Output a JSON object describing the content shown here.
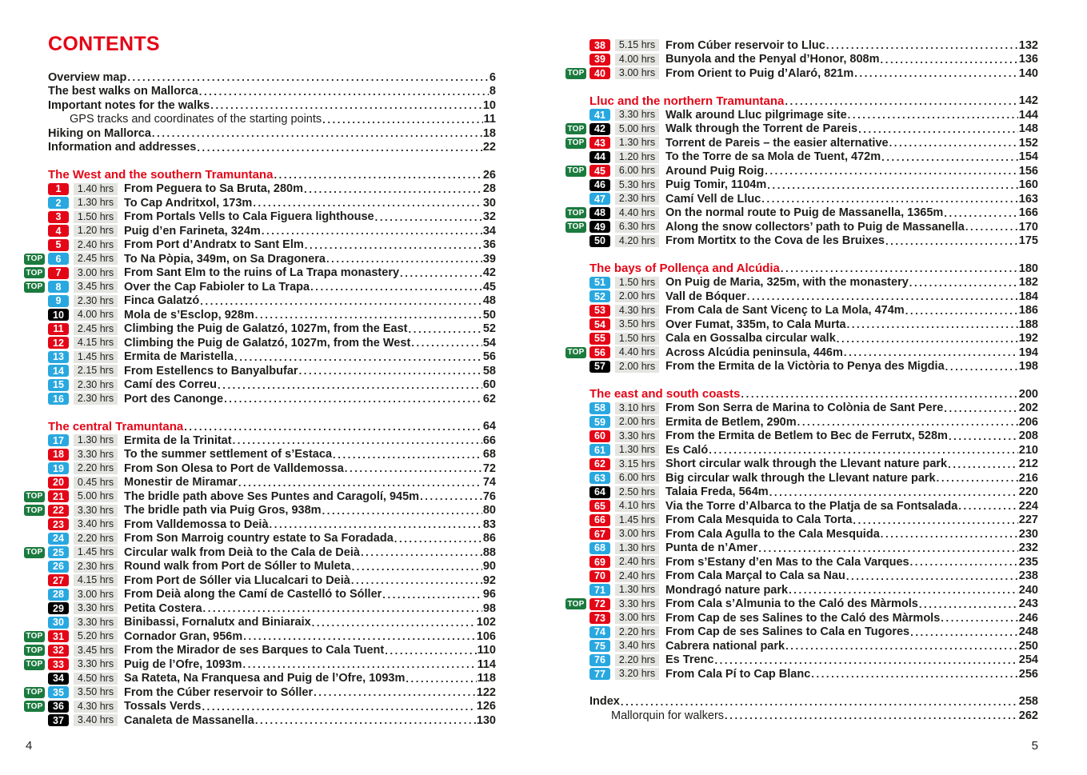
{
  "colors": {
    "accent_red": "#e30617",
    "top_green": "#1b7a3e",
    "easy_blue": "#29a8e0",
    "hard_black": "#000000",
    "time_bg": "#e4e4e0",
    "text": "#1d1d1b"
  },
  "badges": {
    "top_label": "TOP"
  },
  "page_left": {
    "title": "CONTENTS",
    "footer_page": "4",
    "intro": [
      {
        "label": "Overview map",
        "page": "6"
      },
      {
        "label": "The best walks on Mallorca",
        "page": "8"
      },
      {
        "label": "Important notes for the walks",
        "page": "10"
      },
      {
        "label": "GPS tracks and coordinates of the starting points",
        "page": "11",
        "indent": true,
        "plain": true
      },
      {
        "label": "Hiking on Mallorca",
        "page": "18"
      },
      {
        "label": "Information and addresses",
        "page": "22"
      }
    ],
    "groups": [
      {
        "heading": "The West and the southern Tramuntana",
        "page": "26",
        "walks": [
          {
            "num": "1",
            "difficulty": "red",
            "top": false,
            "time": "1.40 hrs",
            "title": "From Peguera to Sa Bruta, 280m",
            "page": "28"
          },
          {
            "num": "2",
            "difficulty": "blue",
            "top": false,
            "time": "1.30 hrs",
            "title": "To Cap Andritxol, 173m",
            "page": "30"
          },
          {
            "num": "3",
            "difficulty": "red",
            "top": false,
            "time": "1.50 hrs",
            "title": "From Portals Vells to Cala Figuera lighthouse",
            "page": "32"
          },
          {
            "num": "4",
            "difficulty": "red",
            "top": false,
            "time": "1.20 hrs",
            "title": "Puig d’en Farineta, 324m",
            "page": "34"
          },
          {
            "num": "5",
            "difficulty": "red",
            "top": false,
            "time": "2.40 hrs",
            "title": "From Port d’Andratx to Sant Elm",
            "page": "36"
          },
          {
            "num": "6",
            "difficulty": "blue",
            "top": true,
            "time": "2.45 hrs",
            "title": "To Na Pòpia, 349m, on Sa Dragonera",
            "page": "39"
          },
          {
            "num": "7",
            "difficulty": "red",
            "top": true,
            "time": "3.00 hrs",
            "title": "From Sant Elm to the ruins of La Trapa monastery",
            "page": "42"
          },
          {
            "num": "8",
            "difficulty": "blue",
            "top": true,
            "time": "3.45 hrs",
            "title": "Over the Cap Fabioler to La Trapa",
            "page": "45"
          },
          {
            "num": "9",
            "difficulty": "blue",
            "top": false,
            "time": "2.30 hrs",
            "title": "Finca Galatzó",
            "page": "48"
          },
          {
            "num": "10",
            "difficulty": "black",
            "top": false,
            "time": "4.00 hrs",
            "title": "Mola de s’Esclop, 928m",
            "page": "50"
          },
          {
            "num": "11",
            "difficulty": "red",
            "top": false,
            "time": "2.45 hrs",
            "title": "Climbing the Puig de Galatzó, 1027m, from the East",
            "page": "52"
          },
          {
            "num": "12",
            "difficulty": "red",
            "top": false,
            "time": "4.15 hrs",
            "title": "Climbing the Puig de Galatzó, 1027m, from the West",
            "page": "54"
          },
          {
            "num": "13",
            "difficulty": "blue",
            "top": false,
            "time": "1.45 hrs",
            "title": "Ermita de Maristella",
            "page": "56"
          },
          {
            "num": "14",
            "difficulty": "blue",
            "top": false,
            "time": "2.15 hrs",
            "title": "From Estellencs to Banyalbufar",
            "page": "58"
          },
          {
            "num": "15",
            "difficulty": "blue",
            "top": false,
            "time": "2.30 hrs",
            "title": "Camí des Correu",
            "page": "60"
          },
          {
            "num": "16",
            "difficulty": "blue",
            "top": false,
            "time": "2.30 hrs",
            "title": "Port des Canonge",
            "page": "62"
          }
        ]
      },
      {
        "heading": "The central Tramuntana",
        "page": "64",
        "walks": [
          {
            "num": "17",
            "difficulty": "blue",
            "top": false,
            "time": "1.30 hrs",
            "title": "Ermita de la Trinitat",
            "page": "66"
          },
          {
            "num": "18",
            "difficulty": "red",
            "top": false,
            "time": "3.30 hrs",
            "title": "To the summer settlement of s’Estaca",
            "page": "68"
          },
          {
            "num": "19",
            "difficulty": "blue",
            "top": false,
            "time": "2.20 hrs",
            "title": "From Son Olesa to Port de Valldemossa",
            "page": "72"
          },
          {
            "num": "20",
            "difficulty": "red",
            "top": false,
            "time": "0.45 hrs",
            "title": "Monestir de Miramar",
            "page": "74"
          },
          {
            "num": "21",
            "difficulty": "red",
            "top": true,
            "time": "5.00 hrs",
            "title": "The bridle path above Ses Puntes and Caragolí, 945m",
            "page": "76"
          },
          {
            "num": "22",
            "difficulty": "red",
            "top": true,
            "time": "3.30 hrs",
            "title": "The bridle path via Puig Gros, 938m",
            "page": "80"
          },
          {
            "num": "23",
            "difficulty": "red",
            "top": false,
            "time": "3.40 hrs",
            "title": "From Valldemossa to Deià",
            "page": "83"
          },
          {
            "num": "24",
            "difficulty": "blue",
            "top": false,
            "time": "2.20 hrs",
            "title": "From Son Marroig country estate to Sa Foradada",
            "page": "86"
          },
          {
            "num": "25",
            "difficulty": "blue",
            "top": true,
            "time": "1.45 hrs",
            "title": "Circular walk from Deià to the Cala de Deià",
            "page": "88"
          },
          {
            "num": "26",
            "difficulty": "blue",
            "top": false,
            "time": "2.30 hrs",
            "title": "Round walk from Port de Sóller to Muleta",
            "page": "90"
          },
          {
            "num": "27",
            "difficulty": "red",
            "top": false,
            "time": "4.15 hrs",
            "title": "From Port de Sóller via Llucalcari to Deià",
            "page": "92"
          },
          {
            "num": "28",
            "difficulty": "blue",
            "top": false,
            "time": "3.00 hrs",
            "title": "From Deià along the Camí de Castelló to Sóller",
            "page": "96"
          },
          {
            "num": "29",
            "difficulty": "black",
            "top": false,
            "time": "3.30 hrs",
            "title": "Petita Costera",
            "page": "98"
          },
          {
            "num": "30",
            "difficulty": "blue",
            "top": false,
            "time": "3.30 hrs",
            "title": "Binibassi, Fornalutx and Biniaraix",
            "page": "102"
          },
          {
            "num": "31",
            "difficulty": "red",
            "top": true,
            "time": "5.20 hrs",
            "title": "Cornador Gran, 956m",
            "page": "106"
          },
          {
            "num": "32",
            "difficulty": "red",
            "top": true,
            "time": "3.45 hrs",
            "title": "From the Mirador de ses Barques to Cala Tuent",
            "page": "110"
          },
          {
            "num": "33",
            "difficulty": "red",
            "top": true,
            "time": "3.30 hrs",
            "title": "Puig de l’Ofre, 1093m",
            "page": "114"
          },
          {
            "num": "34",
            "difficulty": "black",
            "top": false,
            "time": "4.50 hrs",
            "title": "Sa Rateta, Na Franquesa and Puig de l’Ofre, 1093m",
            "page": "118"
          },
          {
            "num": "35",
            "difficulty": "blue",
            "top": true,
            "time": "3.50 hrs",
            "title": "From the Cúber reservoir to Sóller",
            "page": "122"
          },
          {
            "num": "36",
            "difficulty": "black",
            "top": true,
            "time": "4.30 hrs",
            "title": "Tossals Verds",
            "page": "126"
          },
          {
            "num": "37",
            "difficulty": "black",
            "top": false,
            "time": "3.40 hrs",
            "title": "Canaleta de Massanella",
            "page": "130"
          }
        ]
      }
    ]
  },
  "page_right": {
    "footer_page": "5",
    "groups": [
      {
        "heading": null,
        "walks": [
          {
            "num": "38",
            "difficulty": "red",
            "top": false,
            "time": "5.15 hrs",
            "title": "From Cúber reservoir to Lluc",
            "page": "132"
          },
          {
            "num": "39",
            "difficulty": "red",
            "top": false,
            "time": "4.00 hrs",
            "title": "Bunyola and the Penyal d’Honor, 808m",
            "page": "136"
          },
          {
            "num": "40",
            "difficulty": "red",
            "top": true,
            "time": "3.00 hrs",
            "title": "From Orient to Puig d’Alaró, 821m",
            "page": "140"
          }
        ]
      },
      {
        "heading": "Lluc and the northern Tramuntana",
        "page": "142",
        "walks": [
          {
            "num": "41",
            "difficulty": "blue",
            "top": false,
            "time": "3.30 hrs",
            "title": "Walk around Lluc pilgrimage site",
            "page": "144"
          },
          {
            "num": "42",
            "difficulty": "black",
            "top": true,
            "time": "5.00 hrs",
            "title": "Walk through the Torrent de Pareis",
            "page": "148"
          },
          {
            "num": "43",
            "difficulty": "red",
            "top": true,
            "time": "1.30 hrs",
            "title": "Torrent de Pareis – the easier alternative",
            "page": "152"
          },
          {
            "num": "44",
            "difficulty": "black",
            "top": false,
            "time": "1.20 hrs",
            "title": "To the Torre de sa Mola de Tuent, 472m",
            "page": "154"
          },
          {
            "num": "45",
            "difficulty": "red",
            "top": true,
            "time": "6.00 hrs",
            "title": "Around Puig Roig",
            "page": "156"
          },
          {
            "num": "46",
            "difficulty": "black",
            "top": false,
            "time": "5.30 hrs",
            "title": "Puig Tomir, 1104m",
            "page": "160"
          },
          {
            "num": "47",
            "difficulty": "blue",
            "top": false,
            "time": "2.30 hrs",
            "title": "Camí Vell de Lluc",
            "page": "163"
          },
          {
            "num": "48",
            "difficulty": "black",
            "top": true,
            "time": "4.40 hrs",
            "title": "On the normal route to Puig de Massanella, 1365m",
            "page": "166"
          },
          {
            "num": "49",
            "difficulty": "black",
            "top": true,
            "time": "6.30 hrs",
            "title": "Along the snow collectors’ path to Puig de Massanella",
            "page": "170"
          },
          {
            "num": "50",
            "difficulty": "black",
            "top": false,
            "time": "4.20 hrs",
            "title": "From Mortitx to the Cova de les Bruixes",
            "page": "175"
          }
        ]
      },
      {
        "heading": "The bays of Pollença and Alcúdia",
        "page": "180",
        "walks": [
          {
            "num": "51",
            "difficulty": "blue",
            "top": false,
            "time": "1.50 hrs",
            "title": "On Puig de Maria, 325m, with the monastery",
            "page": "182"
          },
          {
            "num": "52",
            "difficulty": "blue",
            "top": false,
            "time": "2.00 hrs",
            "title": "Vall de Bóquer",
            "page": "184"
          },
          {
            "num": "53",
            "difficulty": "red",
            "top": false,
            "time": "4.30 hrs",
            "title": "From Cala de Sant Vicenç to La Mola, 474m",
            "page": "186"
          },
          {
            "num": "54",
            "difficulty": "red",
            "top": false,
            "time": "3.50 hrs",
            "title": "Over Fumat, 335m, to Cala Murta",
            "page": "188"
          },
          {
            "num": "55",
            "difficulty": "red",
            "top": false,
            "time": "1.50 hrs",
            "title": "Cala en Gossalba circular walk",
            "page": "192"
          },
          {
            "num": "56",
            "difficulty": "red",
            "top": true,
            "time": "4.40 hrs",
            "title": "Across Alcúdia peninsula, 446m",
            "page": "194"
          },
          {
            "num": "57",
            "difficulty": "black",
            "top": false,
            "time": "2.00 hrs",
            "title": "From the Ermita de la Victòria to Penya des Migdia",
            "page": "198"
          }
        ]
      },
      {
        "heading": "The east and south coasts",
        "page": "200",
        "walks": [
          {
            "num": "58",
            "difficulty": "blue",
            "top": false,
            "time": "3.10 hrs",
            "title": "From Son Serra de Marina to Colònia de Sant Pere",
            "page": "202"
          },
          {
            "num": "59",
            "difficulty": "blue",
            "top": false,
            "time": "2.00 hrs",
            "title": "Ermita de Betlem, 290m",
            "page": "206"
          },
          {
            "num": "60",
            "difficulty": "red",
            "top": false,
            "time": "3.30 hrs",
            "title": "From the Ermita de Betlem to Bec de Ferrutx, 528m",
            "page": "208"
          },
          {
            "num": "61",
            "difficulty": "blue",
            "top": false,
            "time": "1.30 hrs",
            "title": "Es Caló",
            "page": "210"
          },
          {
            "num": "62",
            "difficulty": "red",
            "top": false,
            "time": "3.15 hrs",
            "title": "Short circular walk through the Llevant nature park",
            "page": "212"
          },
          {
            "num": "63",
            "difficulty": "blue",
            "top": false,
            "time": "6.00 hrs",
            "title": "Big circular walk through the Llevant nature park",
            "page": "216"
          },
          {
            "num": "64",
            "difficulty": "black",
            "top": false,
            "time": "2.50 hrs",
            "title": "Talaia Freda, 564m",
            "page": "220"
          },
          {
            "num": "65",
            "difficulty": "red",
            "top": false,
            "time": "4.10 hrs",
            "title": "Via the Torre d’Albarca to the Platja de sa Fontsalada",
            "page": "224"
          },
          {
            "num": "66",
            "difficulty": "red",
            "top": false,
            "time": "1.45 hrs",
            "title": "From Cala Mesquida to Cala Torta",
            "page": "227"
          },
          {
            "num": "67",
            "difficulty": "red",
            "top": false,
            "time": "3.00 hrs",
            "title": "From Cala Agulla to the Cala Mesquida",
            "page": "230"
          },
          {
            "num": "68",
            "difficulty": "blue",
            "top": false,
            "time": "1.30 hrs",
            "title": "Punta de n’Amer",
            "page": "232"
          },
          {
            "num": "69",
            "difficulty": "red",
            "top": false,
            "time": "2.40 hrs",
            "title": "From s’Estany d’en Mas to the Cala Varques",
            "page": "235"
          },
          {
            "num": "70",
            "difficulty": "red",
            "top": false,
            "time": "2.40 hrs",
            "title": "From Cala Marçal to Cala sa Nau",
            "page": "238"
          },
          {
            "num": "71",
            "difficulty": "blue",
            "top": false,
            "time": "1.30 hrs",
            "title": "Mondragó nature park",
            "page": "240"
          },
          {
            "num": "72",
            "difficulty": "red",
            "top": true,
            "time": "3.30 hrs",
            "title": "From Cala s’Almunia to the Caló des Màrmols",
            "page": "243"
          },
          {
            "num": "73",
            "difficulty": "red",
            "top": false,
            "time": "3.00 hrs",
            "title": "From Cap de ses Salines to the Caló des Màrmols",
            "page": "246"
          },
          {
            "num": "74",
            "difficulty": "blue",
            "top": false,
            "time": "2.20 hrs",
            "title": "From Cap de ses Salines to Cala en Tugores",
            "page": "248"
          },
          {
            "num": "75",
            "difficulty": "blue",
            "top": false,
            "time": "3.40 hrs",
            "title": "Cabrera national park",
            "page": "250"
          },
          {
            "num": "76",
            "difficulty": "blue",
            "top": false,
            "time": "2.20 hrs",
            "title": "Es Trenc",
            "page": "254"
          },
          {
            "num": "77",
            "difficulty": "blue",
            "top": false,
            "time": "3.20 hrs",
            "title": "From Cala Pí to Cap Blanc",
            "page": "256"
          }
        ]
      }
    ],
    "outro": [
      {
        "label": "Index",
        "page": "258"
      },
      {
        "label": "Mallorquin for walkers",
        "page": "262",
        "indent": true,
        "plain": true
      }
    ]
  }
}
